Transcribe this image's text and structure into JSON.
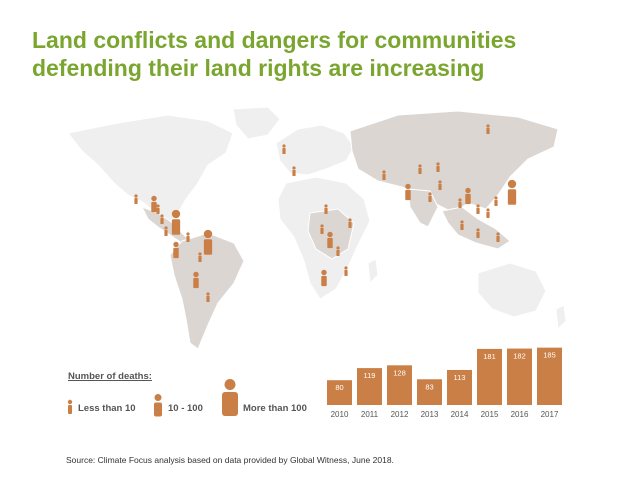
{
  "title_line1": "Land conflicts and dangers for communities",
  "title_line2": "defending their land rights are increasing",
  "legend": {
    "title": "Number of deaths:",
    "items": [
      "Less than 10",
      "10 - 100",
      "More than 100"
    ]
  },
  "source": "Source: Climate Focus analysis based on data provided by Global Witness, June 2018.",
  "colors": {
    "title": "#7aa630",
    "bar": "#c97f45",
    "map_highlight": "#dcd6d2",
    "map_base": "#f1f1f1",
    "marker": "#c97f45"
  },
  "chart_data": {
    "type": "bar",
    "title": "",
    "categories": [
      "2010",
      "2011",
      "2012",
      "2013",
      "2014",
      "2015",
      "2016",
      "2017"
    ],
    "values": [
      80,
      119,
      128,
      83,
      113,
      181,
      182,
      185
    ],
    "xlabel": "",
    "ylabel": "",
    "ylim": [
      0,
      200
    ]
  }
}
